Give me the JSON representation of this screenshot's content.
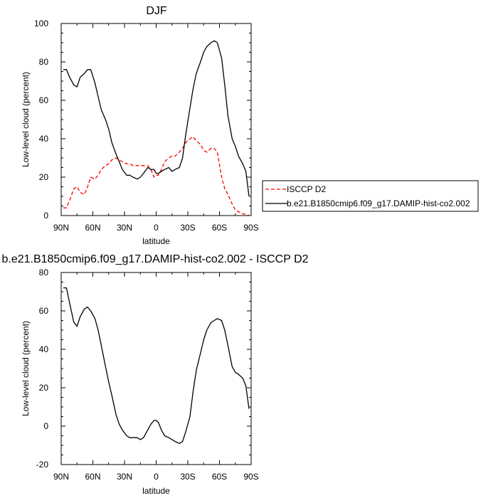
{
  "chart_data": [
    {
      "type": "line",
      "title": "DJF",
      "xlabel": "latitude",
      "ylabel": "Low-level cloud (percent)",
      "xlim": [
        90,
        -90
      ],
      "ylim": [
        0,
        100
      ],
      "xticks": [
        90,
        60,
        30,
        0,
        -30,
        -60,
        -90
      ],
      "xtick_labels": [
        "90N",
        "60N",
        "30N",
        "0",
        "30S",
        "60S",
        "90S"
      ],
      "yticks": [
        0,
        20,
        40,
        60,
        80,
        100
      ],
      "ytick_labels": [
        "0",
        "20",
        "40",
        "60",
        "80",
        "100"
      ],
      "legend": {
        "placement": "right",
        "entries": [
          "ISCCP D2",
          "b.e21.B1850cmip6.f09_g17.DAMIP-hist-co2.002"
        ]
      },
      "series": [
        {
          "name": "ISCCP D2",
          "color": "#ff0000",
          "dashed": true,
          "x": [
            88,
            85,
            82,
            78,
            75,
            72,
            68,
            65,
            62,
            58,
            55,
            52,
            48,
            45,
            42,
            38,
            35,
            32,
            28,
            25,
            22,
            18,
            15,
            12,
            8,
            5,
            2,
            0,
            -2,
            -5,
            -8,
            -12,
            -15,
            -18,
            -22,
            -25,
            -28,
            -32,
            -35,
            -38,
            -42,
            -45,
            -48,
            -52,
            -55,
            -58,
            -62,
            -65,
            -68,
            -72,
            -75,
            -78,
            -82,
            -85,
            -88
          ],
          "y": [
            4,
            4,
            8,
            14,
            15,
            12,
            11,
            15,
            20,
            19,
            21,
            24,
            26,
            27,
            29,
            30,
            29,
            28,
            27,
            27,
            26,
            26,
            26,
            26,
            26,
            24,
            20,
            21,
            21,
            24,
            28,
            30,
            31,
            31,
            33,
            35,
            38,
            40,
            41,
            39,
            37,
            34,
            33,
            35,
            35,
            33,
            20,
            14,
            11,
            6,
            3,
            2,
            1,
            0.5,
            0
          ]
        },
        {
          "name": "b.e21.B1850cmip6.f09_g17.DAMIP-hist-co2.002",
          "color": "#000000",
          "dashed": false,
          "x": [
            88,
            85,
            82,
            78,
            75,
            72,
            68,
            65,
            62,
            58,
            55,
            52,
            48,
            45,
            42,
            38,
            35,
            32,
            28,
            25,
            22,
            18,
            15,
            12,
            8,
            5,
            2,
            0,
            -2,
            -5,
            -8,
            -12,
            -15,
            -18,
            -22,
            -25,
            -28,
            -32,
            -35,
            -38,
            -42,
            -45,
            -48,
            -52,
            -55,
            -58,
            -62,
            -65,
            -68,
            -72,
            -75,
            -78,
            -82,
            -85,
            -88
          ],
          "y": [
            76,
            76,
            72,
            68,
            67,
            72,
            74,
            76,
            76,
            69,
            62,
            55,
            50,
            45,
            38,
            32,
            28,
            24,
            21,
            21,
            20,
            19,
            20,
            22,
            25,
            24,
            24,
            22,
            22,
            23,
            24,
            25,
            23,
            24,
            25,
            30,
            42,
            56,
            66,
            74,
            80,
            85,
            88,
            90,
            91,
            90,
            82,
            68,
            52,
            40,
            36,
            31,
            27,
            23,
            10
          ]
        }
      ]
    },
    {
      "type": "line",
      "title": "b.e21.B1850cmip6.f09_g17.DAMIP-hist-co2.002 - ISCCP D2",
      "xlabel": "latitude",
      "ylabel": "Low-level cloud (percent)",
      "xlim": [
        90,
        -90
      ],
      "ylim": [
        -20,
        80
      ],
      "xticks": [
        90,
        60,
        30,
        0,
        -30,
        -60,
        -90
      ],
      "xtick_labels": [
        "90N",
        "60N",
        "30N",
        "0",
        "30S",
        "60S",
        "90S"
      ],
      "yticks": [
        -20,
        0,
        20,
        40,
        60,
        80
      ],
      "ytick_labels": [
        "-20",
        "0",
        "20",
        "40",
        "60",
        "80"
      ],
      "series": [
        {
          "color": "#000000",
          "dashed": false,
          "x": [
            88,
            85,
            82,
            78,
            75,
            72,
            68,
            65,
            62,
            58,
            55,
            52,
            48,
            45,
            42,
            38,
            35,
            32,
            28,
            25,
            22,
            18,
            15,
            12,
            8,
            5,
            2,
            0,
            -2,
            -5,
            -8,
            -12,
            -15,
            -18,
            -22,
            -25,
            -28,
            -32,
            -35,
            -38,
            -42,
            -45,
            -48,
            -52,
            -55,
            -58,
            -62,
            -65,
            -68,
            -72,
            -75,
            -78,
            -82,
            -85,
            -88
          ],
          "y": [
            72,
            72,
            64,
            54,
            52,
            57,
            61,
            62,
            60,
            56,
            50,
            42,
            31,
            23,
            16,
            6,
            1,
            -2,
            -5,
            -6,
            -6,
            -6,
            -7,
            -6,
            -2,
            1,
            3,
            3,
            2,
            -2,
            -5,
            -6,
            -7,
            -8,
            -9,
            -8,
            -3,
            5,
            18,
            29,
            38,
            45,
            50,
            54,
            55,
            56,
            55,
            50,
            42,
            31,
            28,
            27,
            25,
            21,
            9
          ]
        }
      ]
    }
  ]
}
